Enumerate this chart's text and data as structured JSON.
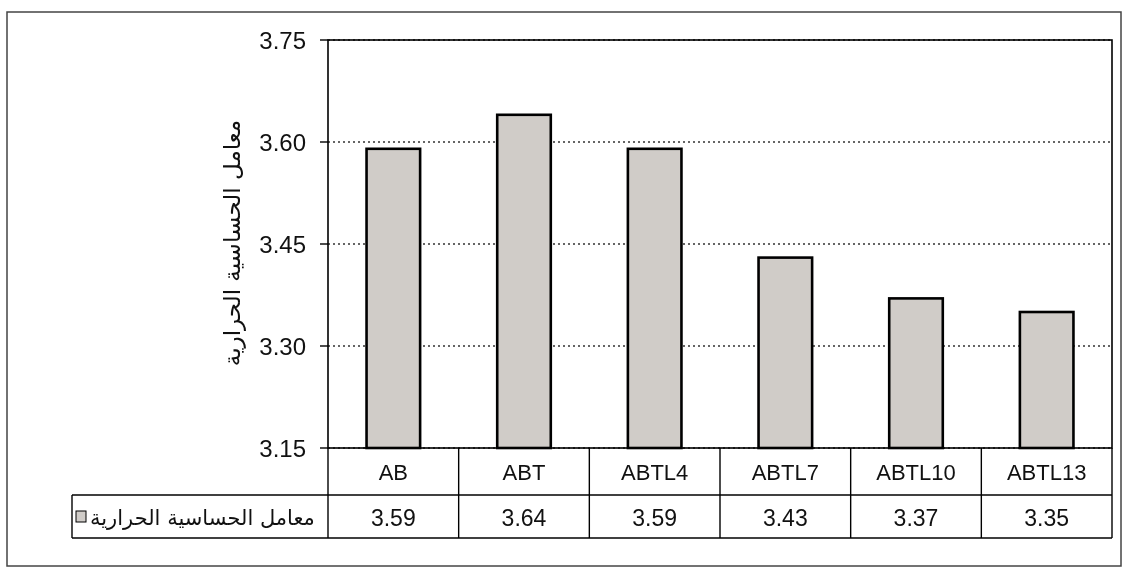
{
  "chart_data": {
    "type": "bar",
    "ylabel": "معامل الحساسية الحرارية",
    "categories": [
      "AB",
      "ABT",
      "ABTL4",
      "ABTL7",
      "ABTL10",
      "ABTL13"
    ],
    "series": [
      {
        "name": "معامل الحساسية الحرارية",
        "color": "#d0ccc8",
        "values": [
          3.59,
          3.64,
          3.59,
          3.43,
          3.37,
          3.35
        ]
      }
    ],
    "ylim": [
      3.15,
      3.75
    ],
    "yticks": [
      3.15,
      {
        "value": 3.3,
        "label": "3.30"
      },
      3.45,
      {
        "value": 3.6,
        "label": "3.60"
      },
      3.75
    ],
    "grid": "y",
    "legend": "bottom left",
    "data_labels": true
  }
}
